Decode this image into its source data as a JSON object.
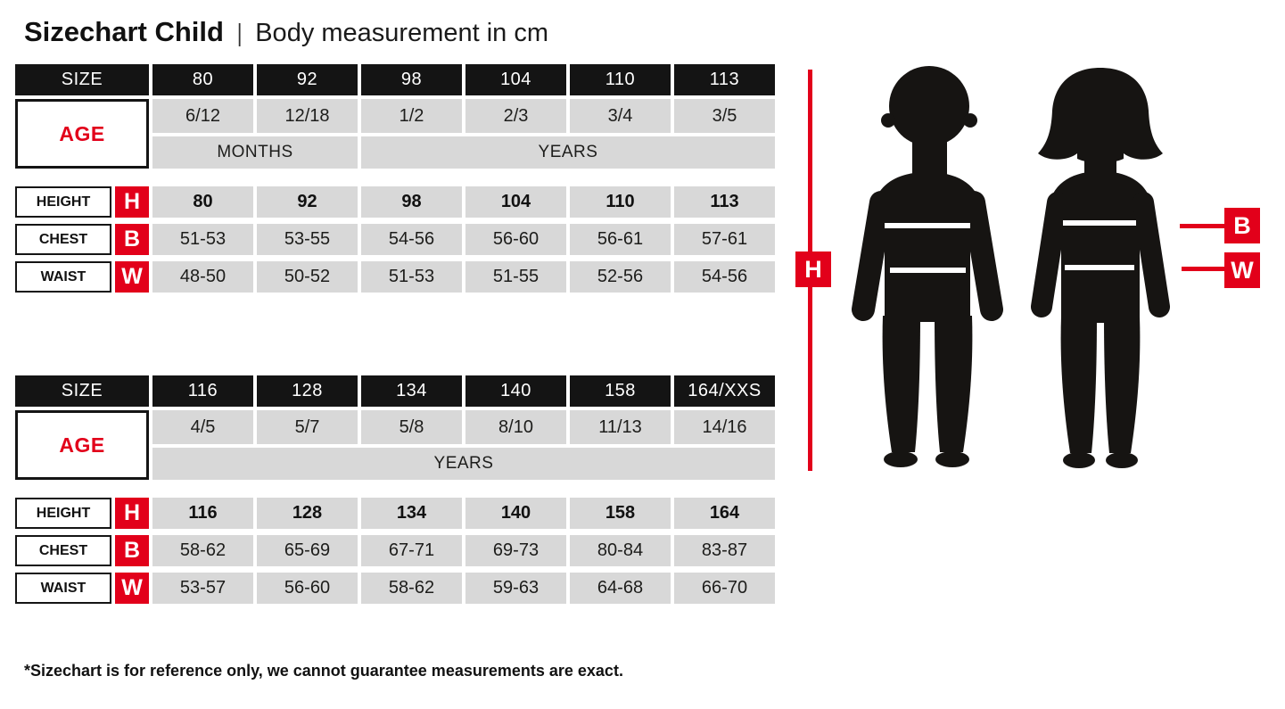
{
  "title": {
    "main": "Sizechart Child",
    "separator": "|",
    "sub": "Body measurement in cm"
  },
  "footnote": "*Sizechart is for reference only, we cannot guarantee measurements are exact.",
  "markers": {
    "height": "H",
    "chest": "B",
    "waist": "W"
  },
  "colors": {
    "accent_red": "#e2001a",
    "cell_black": "#141414",
    "cell_gray": "#d8d8d8"
  },
  "tables": [
    {
      "size_label": "SIZE",
      "age_label": "AGE",
      "sizes": [
        "80",
        "92",
        "98",
        "104",
        "110",
        "113"
      ],
      "ages": [
        "6/12",
        "12/18",
        "1/2",
        "2/3",
        "3/4",
        "3/5"
      ],
      "age_units": [
        {
          "label": "MONTHS",
          "span": 2
        },
        {
          "label": "YEARS",
          "span": 4
        }
      ],
      "rows": [
        {
          "key": "height",
          "label": "HEIGHT",
          "letter": "H",
          "bold": true,
          "values": [
            "80",
            "92",
            "98",
            "104",
            "110",
            "113"
          ]
        },
        {
          "key": "chest",
          "label": "CHEST",
          "letter": "B",
          "bold": false,
          "values": [
            "51-53",
            "53-55",
            "54-56",
            "56-60",
            "56-61",
            "57-61"
          ]
        },
        {
          "key": "waist",
          "label": "WAIST",
          "letter": "W",
          "bold": false,
          "values": [
            "48-50",
            "50-52",
            "51-53",
            "51-55",
            "52-56",
            "54-56"
          ]
        }
      ]
    },
    {
      "size_label": "SIZE",
      "age_label": "AGE",
      "sizes": [
        "116",
        "128",
        "134",
        "140",
        "158",
        "164/XXS"
      ],
      "ages": [
        "4/5",
        "5/7",
        "5/8",
        "8/10",
        "11/13",
        "14/16"
      ],
      "age_units": [
        {
          "label": "YEARS",
          "span": 6
        }
      ],
      "rows": [
        {
          "key": "height",
          "label": "HEIGHT",
          "letter": "H",
          "bold": true,
          "values": [
            "116",
            "128",
            "134",
            "140",
            "158",
            "164"
          ]
        },
        {
          "key": "chest",
          "label": "CHEST",
          "letter": "B",
          "bold": false,
          "values": [
            "58-62",
            "65-69",
            "67-71",
            "69-73",
            "80-84",
            "83-87"
          ]
        },
        {
          "key": "waist",
          "label": "WAIST",
          "letter": "W",
          "bold": false,
          "values": [
            "53-57",
            "56-60",
            "58-62",
            "59-63",
            "64-68",
            "66-70"
          ]
        }
      ]
    }
  ],
  "chart_data": [
    {
      "type": "table",
      "title": "Sizechart Child — Body measurement in cm (small sizes)",
      "columns": [
        "SIZE",
        "80",
        "92",
        "98",
        "104",
        "110",
        "113"
      ],
      "rows": [
        [
          "AGE",
          "6/12 MONTHS",
          "12/18 MONTHS",
          "1/2 YEARS",
          "2/3 YEARS",
          "3/4 YEARS",
          "3/5 YEARS"
        ],
        [
          "HEIGHT (H)",
          "80",
          "92",
          "98",
          "104",
          "110",
          "113"
        ],
        [
          "CHEST (B)",
          "51-53",
          "53-55",
          "54-56",
          "56-60",
          "56-61",
          "57-61"
        ],
        [
          "WAIST (W)",
          "48-50",
          "50-52",
          "51-53",
          "51-55",
          "52-56",
          "54-56"
        ]
      ]
    },
    {
      "type": "table",
      "title": "Sizechart Child — Body measurement in cm (large sizes)",
      "columns": [
        "SIZE",
        "116",
        "128",
        "134",
        "140",
        "158",
        "164/XXS"
      ],
      "rows": [
        [
          "AGE",
          "4/5 YEARS",
          "5/7 YEARS",
          "5/8 YEARS",
          "8/10 YEARS",
          "11/13 YEARS",
          "14/16 YEARS"
        ],
        [
          "HEIGHT (H)",
          "116",
          "128",
          "134",
          "140",
          "158",
          "164"
        ],
        [
          "CHEST (B)",
          "58-62",
          "65-69",
          "67-71",
          "69-73",
          "80-84",
          "83-87"
        ],
        [
          "WAIST (W)",
          "53-57",
          "56-60",
          "58-62",
          "59-63",
          "64-68",
          "66-70"
        ]
      ]
    }
  ]
}
